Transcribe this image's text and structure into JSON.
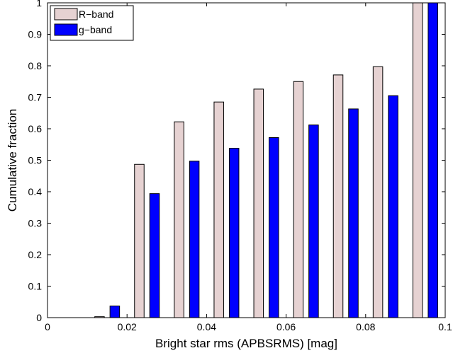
{
  "chart_data": {
    "type": "bar",
    "title": "",
    "xlabel": "Bright star rms (APBSRMS) [mag]",
    "ylabel": "Cumulative fraction",
    "xlim": [
      0,
      0.1
    ],
    "ylim": [
      0,
      1
    ],
    "xticks": [
      0,
      0.02,
      0.04,
      0.06,
      0.08,
      0.1
    ],
    "xtick_labels": [
      "0",
      "0.02",
      "0.04",
      "0.06",
      "0.08",
      "0.1"
    ],
    "yticks": [
      0,
      0.1,
      0.2,
      0.3,
      0.4,
      0.5,
      0.6,
      0.7,
      0.8,
      0.9,
      1
    ],
    "ytick_labels": [
      "0",
      "0.1",
      "0.2",
      "0.3",
      "0.4",
      "0.5",
      "0.6",
      "0.7",
      "0.8",
      "0.9",
      "1"
    ],
    "x": [
      0.005,
      0.015,
      0.025,
      0.035,
      0.045,
      0.055,
      0.065,
      0.075,
      0.085,
      0.095
    ],
    "series": [
      {
        "name": "R−band",
        "color": "#e6d2d2",
        "values": [
          0,
          0.003,
          0.487,
          0.622,
          0.685,
          0.726,
          0.75,
          0.771,
          0.797,
          1.0
        ]
      },
      {
        "name": "g−band",
        "color": "#0000ff",
        "values": [
          0,
          0.037,
          0.394,
          0.497,
          0.538,
          0.572,
          0.612,
          0.663,
          0.705,
          1.0
        ]
      }
    ],
    "grid": false,
    "legend_position": "top-left"
  }
}
